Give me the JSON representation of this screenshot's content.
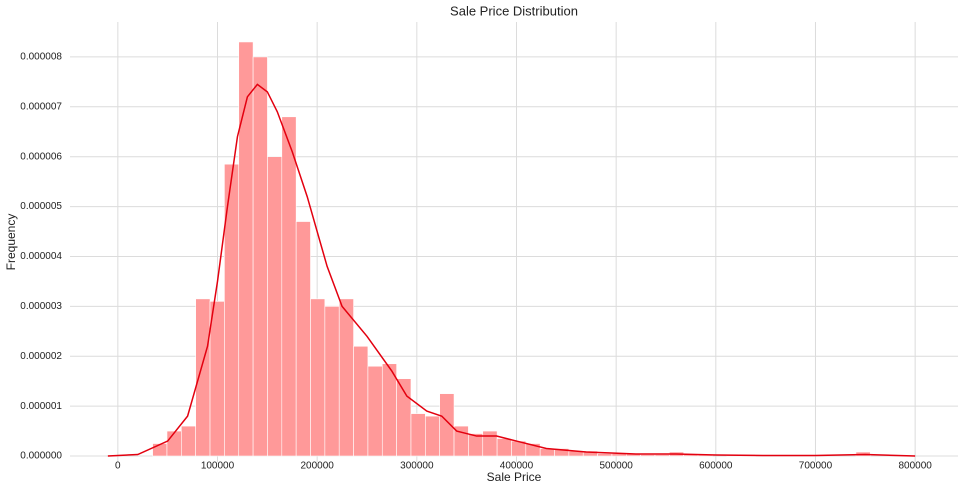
{
  "chart_data": {
    "type": "histogram",
    "title": "Sale Price Distribution",
    "x_label": "Sale Price",
    "y_label": "Frequency",
    "color": "#ff9999",
    "bins": [
      34900,
      49302,
      63704,
      78106,
      92508,
      106910,
      121312,
      135714,
      150116,
      164518,
      178920,
      193322,
      207724,
      222126,
      236528,
      250930,
      265332,
      279734,
      294136,
      308538,
      322940,
      337342,
      351744,
      366146,
      380548,
      394950,
      409352,
      423754,
      438156,
      452558,
      466960,
      481362,
      495764,
      510166,
      524568,
      538970,
      553372,
      567774,
      582176,
      596578,
      610980,
      625382,
      639784,
      654186,
      668588,
      682990,
      697392,
      711794,
      726196,
      740598,
      755000
    ],
    "values": [
      2.5e-07,
      5e-07,
      6e-07,
      3.15e-06,
      3.1e-06,
      5.85e-06,
      8.3e-06,
      8e-06,
      6e-06,
      6.8e-06,
      4.7e-06,
      3.15e-06,
      3e-06,
      3.15e-06,
      2.2e-06,
      1.8e-06,
      1.85e-06,
      1.55e-06,
      8.5e-07,
      8e-07,
      1.25e-06,
      6e-07,
      4.5e-07,
      5e-07,
      3.5e-07,
      3e-07,
      2.5e-07,
      1.5e-07,
      1.5e-07,
      1e-07,
      1e-07,
      5e-08,
      5e-08,
      5e-08,
      3e-08,
      3e-08,
      8e-08,
      3e-08,
      3e-08,
      0,
      3e-08,
      3e-08,
      0,
      0,
      0,
      0,
      0,
      0,
      0,
      8e-08
    ],
    "kde": {
      "color": "#e3000f",
      "x": [
        -10000,
        20000,
        50000,
        70000,
        90000,
        100000,
        110000,
        120000,
        130000,
        140000,
        150000,
        160000,
        175000,
        190000,
        200000,
        210000,
        225000,
        250000,
        275000,
        290000,
        310000,
        325000,
        340000,
        360000,
        380000,
        400000,
        430000,
        470000,
        520000,
        560000,
        600000,
        650000,
        700000,
        750000,
        800000
      ],
      "y": [
        0,
        3e-08,
        3e-07,
        8e-07,
        2.2e-06,
        3.5e-06,
        5e-06,
        6.4e-06,
        7.2e-06,
        7.45e-06,
        7.3e-06,
        6.9e-06,
        6.1e-06,
        5.2e-06,
        4.5e-06,
        3.8e-06,
        3e-06,
        2.4e-06,
        1.7e-06,
        1.2e-06,
        9e-07,
        8e-07,
        5e-07,
        4e-07,
        4e-07,
        3e-07,
        1.5e-07,
        8e-08,
        4e-08,
        4e-08,
        2e-08,
        1e-08,
        1e-08,
        3e-08,
        0
      ]
    },
    "xlim": [
      -48000,
      843000
    ],
    "ylim": [
      -1.2e-07,
      8.7e-06
    ],
    "xticks": [
      0,
      100000,
      200000,
      300000,
      400000,
      500000,
      600000,
      700000,
      800000
    ],
    "yticks": [
      {
        "value": 0,
        "label": "0.000000"
      },
      {
        "value": 1e-06,
        "label": "0.000001"
      },
      {
        "value": 2e-06,
        "label": "0.000002"
      },
      {
        "value": 3e-06,
        "label": "0.000003"
      },
      {
        "value": 4e-06,
        "label": "0.000004"
      },
      {
        "value": 5e-06,
        "label": "0.000005"
      },
      {
        "value": 6e-06,
        "label": "0.000006"
      },
      {
        "value": 7e-06,
        "label": "0.000007"
      },
      {
        "value": 8e-06,
        "label": "0.000008"
      }
    ],
    "grid": true
  }
}
